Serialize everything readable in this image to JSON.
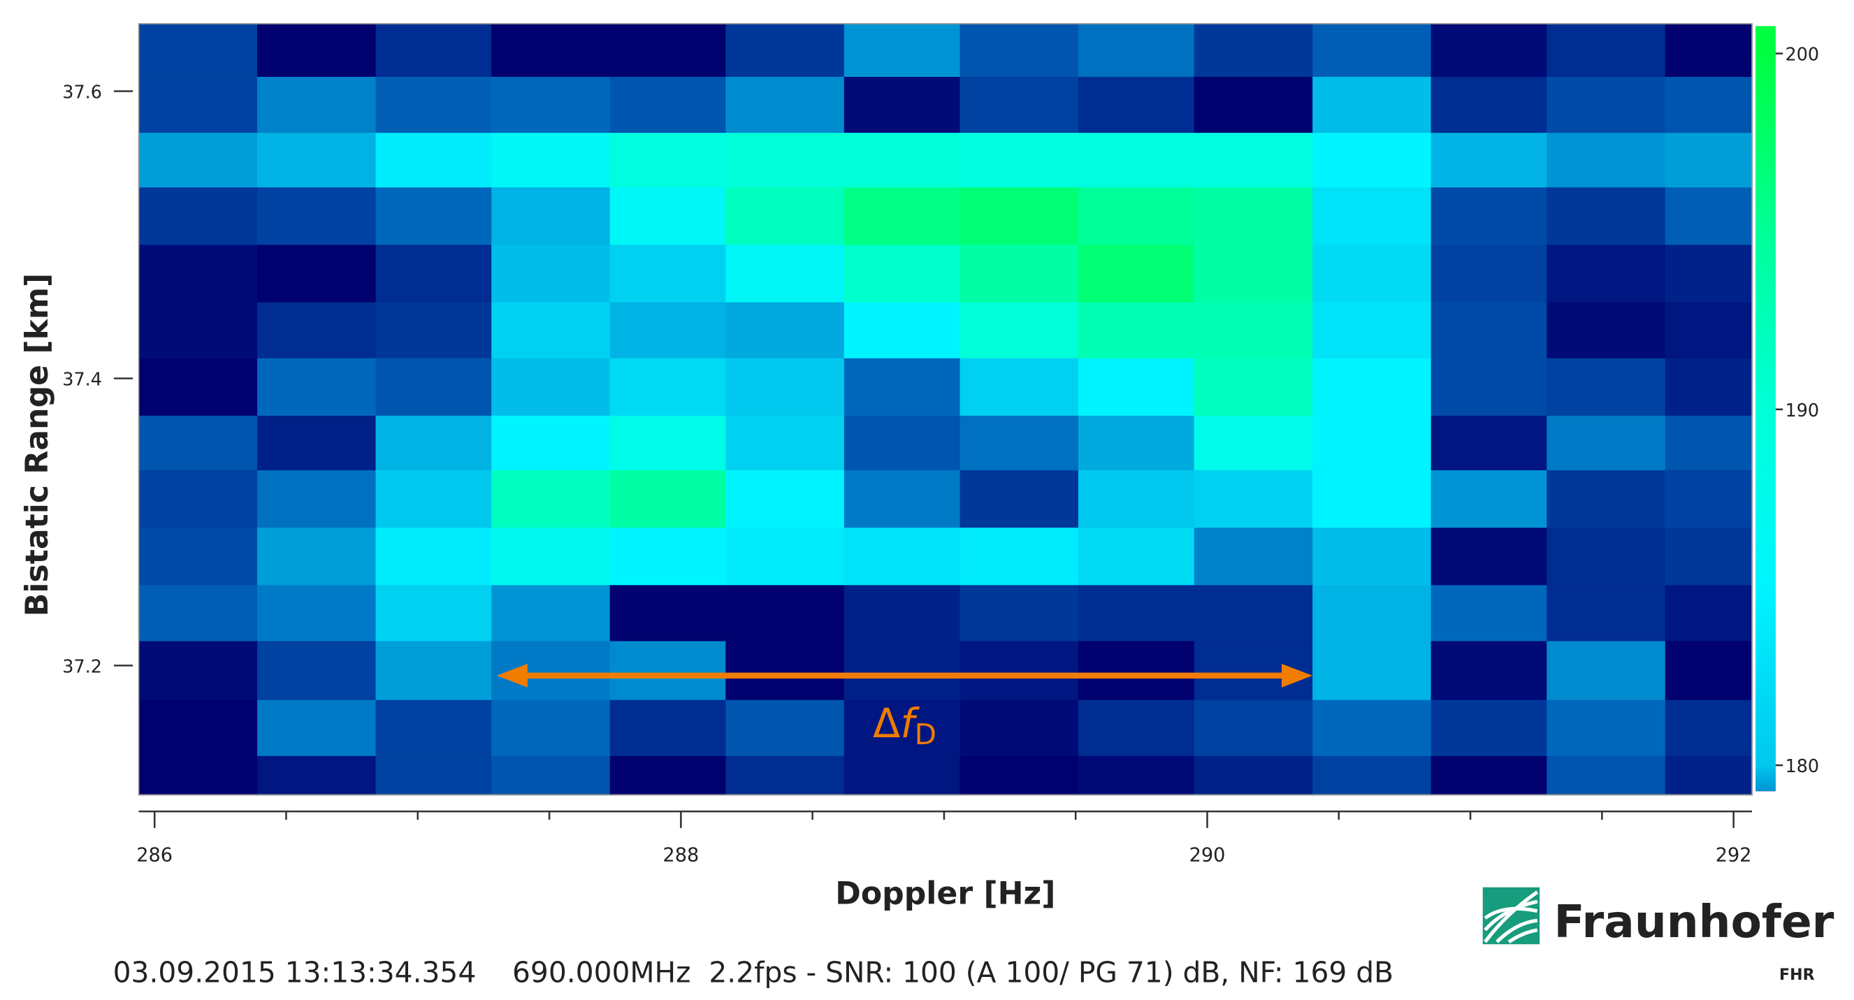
{
  "chart_data": {
    "type": "heatmap",
    "x_label": "Doppler [Hz]",
    "y_label": "Bistatic Range [km]",
    "x_edges": [
      285.94,
      286.39,
      286.84,
      287.28,
      287.73,
      288.17,
      288.62,
      289.06,
      289.51,
      289.95,
      290.4,
      290.85,
      291.29,
      291.74,
      292.07
    ],
    "y_edges": [
      37.647,
      37.61,
      37.571,
      37.533,
      37.493,
      37.453,
      37.414,
      37.374,
      37.336,
      37.296,
      37.256,
      37.217,
      37.176,
      37.137,
      37.11
    ],
    "z": [
      [
        166,
        160,
        164,
        160,
        160,
        165,
        175,
        168,
        171,
        165,
        169,
        161,
        164,
        160
      ],
      [
        166,
        173,
        169,
        170,
        168,
        174,
        161,
        166,
        164,
        160,
        179,
        164,
        167,
        168
      ],
      [
        176,
        178,
        184,
        186,
        189,
        190,
        190,
        189,
        189,
        189,
        185,
        178,
        175,
        176
      ],
      [
        165,
        166,
        170,
        178,
        186,
        192,
        196,
        197,
        195,
        194,
        183,
        167,
        165,
        169
      ],
      [
        161,
        160,
        164,
        179,
        181,
        186,
        191,
        194,
        197,
        194,
        182,
        166,
        162,
        163
      ],
      [
        161,
        164,
        165,
        181,
        178,
        177,
        185,
        190,
        193,
        193,
        183,
        167,
        161,
        162
      ],
      [
        160,
        170,
        168,
        179,
        182,
        180,
        170,
        181,
        185,
        192,
        185,
        167,
        166,
        163
      ],
      [
        168,
        163,
        178,
        185,
        188,
        181,
        168,
        171,
        177,
        188,
        185,
        162,
        172,
        168
      ],
      [
        166,
        171,
        180,
        192,
        194,
        185,
        172,
        165,
        180,
        181,
        185,
        175,
        165,
        166
      ],
      [
        167,
        176,
        184,
        187,
        185,
        184,
        183,
        184,
        182,
        173,
        179,
        161,
        164,
        165
      ],
      [
        169,
        172,
        181,
        175,
        160,
        160,
        163,
        165,
        164,
        164,
        178,
        170,
        164,
        162
      ],
      [
        161,
        166,
        176,
        172,
        174,
        160,
        163,
        162,
        160,
        164,
        178,
        161,
        174,
        160
      ],
      [
        160,
        172,
        166,
        170,
        164,
        168,
        162,
        161,
        164,
        166,
        170,
        165,
        170,
        164
      ],
      [
        160,
        162,
        166,
        168,
        160,
        164,
        162,
        160,
        161,
        163,
        166,
        160,
        168,
        163
      ]
    ],
    "xlim": [
      285.94,
      292.07
    ],
    "ylim": [
      37.11,
      37.647
    ],
    "xticks": [
      286,
      288,
      290,
      292
    ],
    "xticks_minor": [
      286.5,
      287,
      287.5,
      288.5,
      289,
      289.5,
      290.5,
      291,
      291.5
    ],
    "yticks": [
      37.2,
      37.4,
      37.6
    ],
    "clim": [
      179.27,
      200.77
    ],
    "cticks": [
      180,
      190,
      200
    ],
    "colormap": [
      [
        160,
        "#00006e"
      ],
      [
        165,
        "#00389a"
      ],
      [
        170,
        "#0068bc"
      ],
      [
        175,
        "#0094d4"
      ],
      [
        180,
        "#00c8ee"
      ],
      [
        185,
        "#00f4ff"
      ],
      [
        190,
        "#00ffd8"
      ],
      [
        195,
        "#00ff98"
      ],
      [
        200,
        "#00ff40"
      ]
    ],
    "annotations": [
      {
        "x": [
          287.3,
          290.4
        ],
        "y": 37.193,
        "text": "Δ",
        "italic": "f",
        "subscript": "D",
        "color": "#f07c00"
      }
    ],
    "footer": "03.09.2015 13:13:34.354    690.000MHz  2.2fps - SNR: 100 (A 100/ PG 71) dB, NF: 169 dB",
    "logo": {
      "name": "Fraunhofer",
      "sub": "FHR"
    }
  }
}
